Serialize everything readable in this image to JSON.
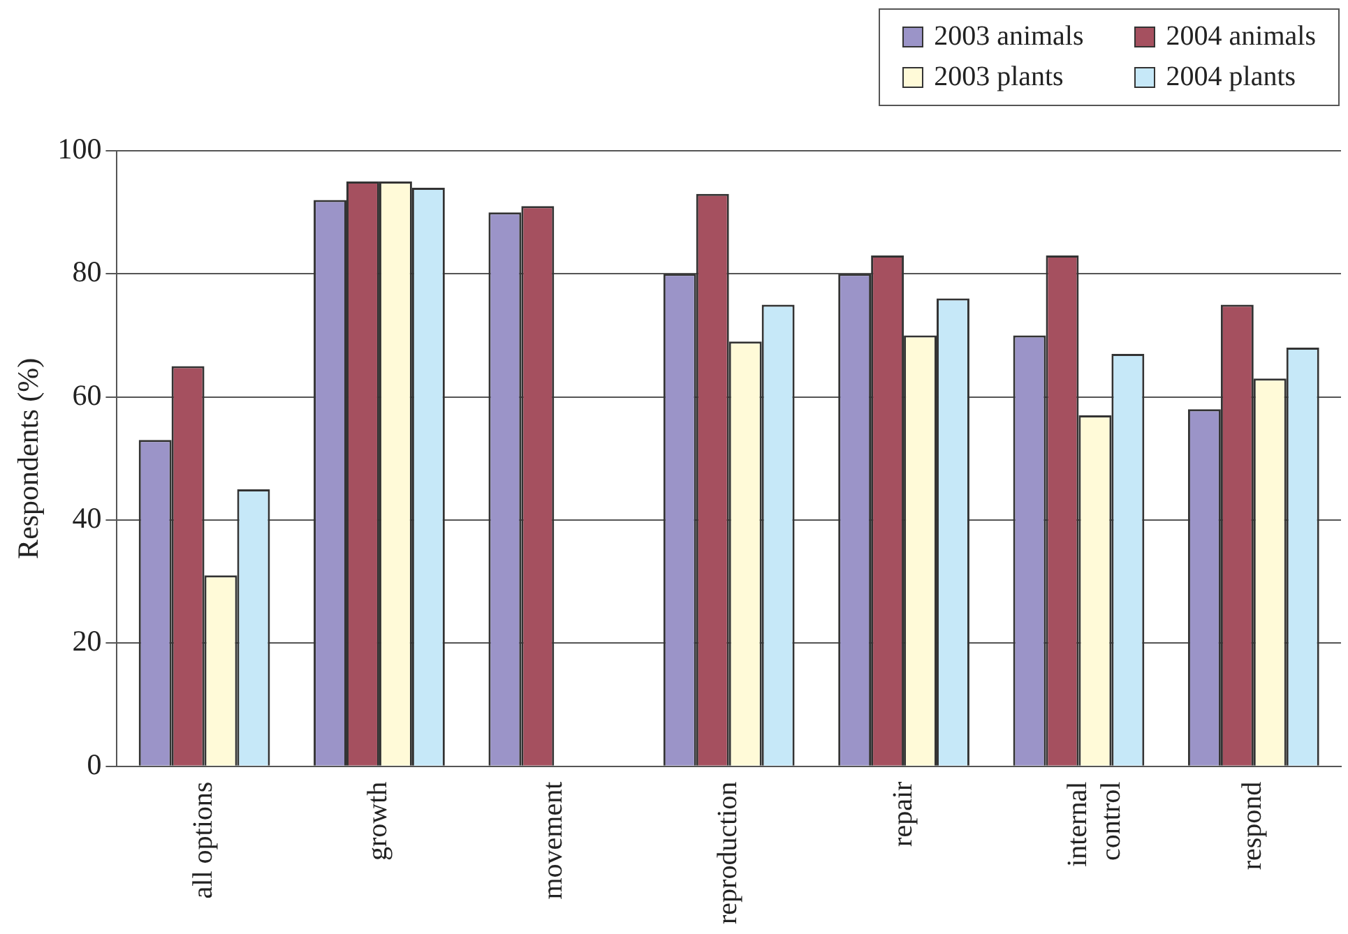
{
  "chart_data": {
    "type": "bar",
    "ylabel": "Respondents (%)",
    "categories": [
      "all options",
      "growth",
      "movement",
      "reproduction",
      "repair",
      "internal control",
      "respond"
    ],
    "series": [
      {
        "name": "2003 animals",
        "color": "#9b94c8",
        "values": [
          53,
          92,
          90,
          80,
          80,
          70,
          58
        ]
      },
      {
        "name": "2004 animals",
        "color": "#a5505f",
        "values": [
          65,
          95,
          91,
          93,
          83,
          83,
          75
        ]
      },
      {
        "name": "2003 plants",
        "color": "#fffad8",
        "values": [
          31,
          95,
          null,
          69,
          70,
          57,
          63
        ]
      },
      {
        "name": "2004 plants",
        "color": "#c6e8f8",
        "values": [
          45,
          94,
          null,
          75,
          76,
          67,
          68
        ]
      }
    ],
    "ylim": [
      0,
      100
    ],
    "yticks": [
      0,
      20,
      40,
      60,
      80,
      100
    ],
    "grid": "y",
    "legend": "top right"
  }
}
